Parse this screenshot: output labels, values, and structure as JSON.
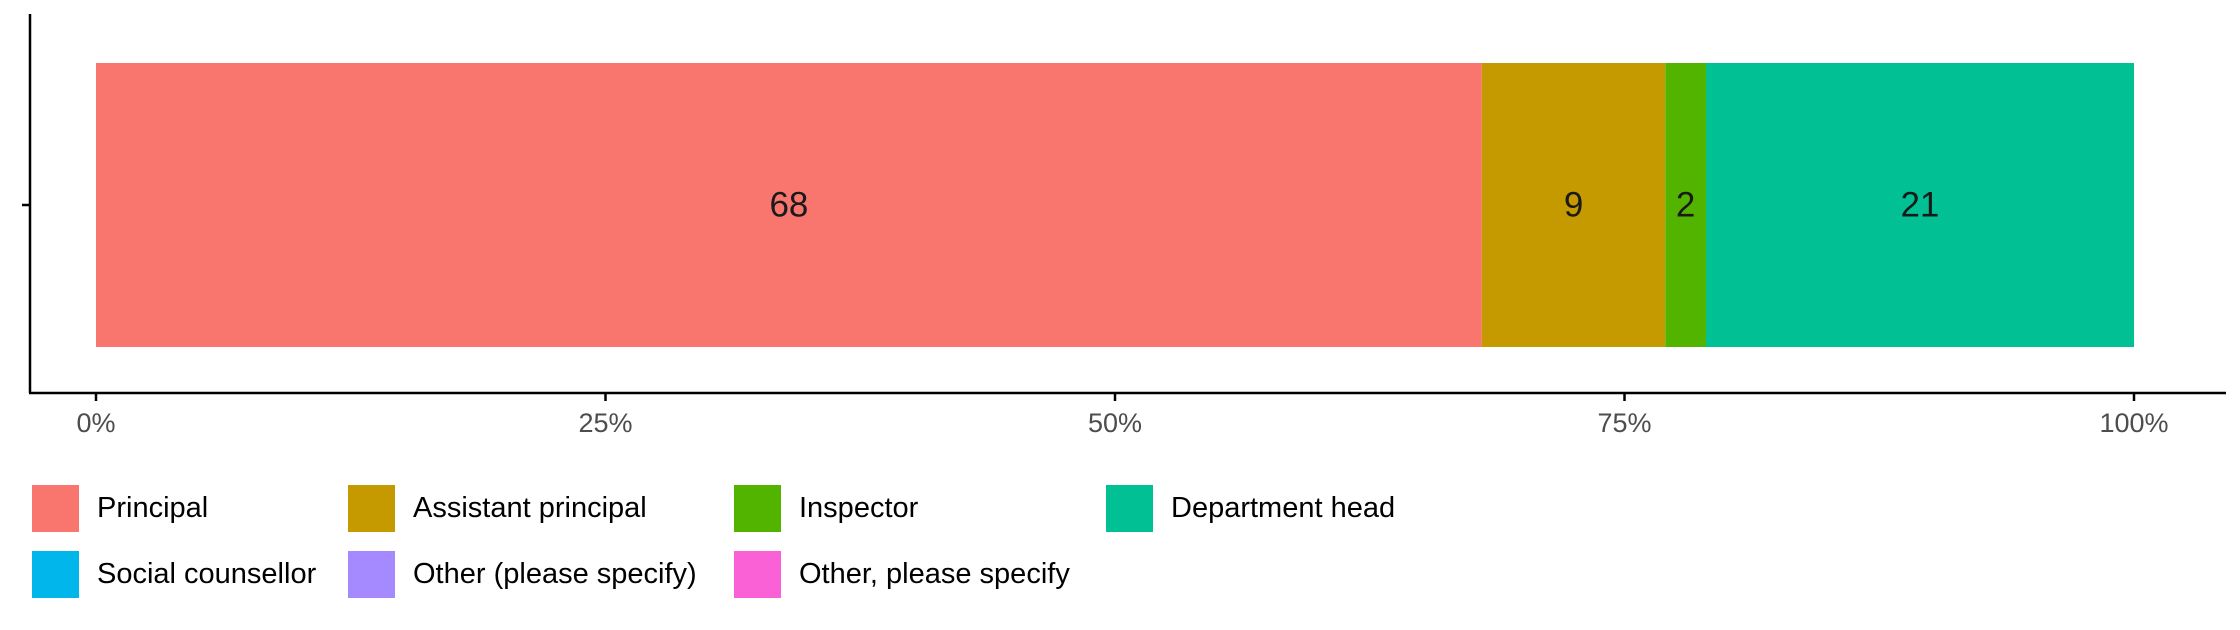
{
  "chart_data": {
    "type": "bar",
    "orientation": "horizontal-stacked-percent",
    "categories": [
      ""
    ],
    "series": [
      {
        "name": "Principal",
        "values": [
          68
        ],
        "color": "#F8766D"
      },
      {
        "name": "Assistant principal",
        "values": [
          9
        ],
        "color": "#C49A00"
      },
      {
        "name": "Inspector",
        "values": [
          2
        ],
        "color": "#53B400"
      },
      {
        "name": "Department head",
        "values": [
          21
        ],
        "color": "#00C094"
      },
      {
        "name": "Social counsellor",
        "values": [
          0
        ],
        "color": "#00B6EB"
      },
      {
        "name": "Other (please specify)",
        "values": [
          0
        ],
        "color": "#A58AFF"
      },
      {
        "name": "Other, please specify",
        "values": [
          0
        ],
        "color": "#FB61D7"
      }
    ],
    "data_labels": [
      "68",
      "9",
      "2",
      "21"
    ],
    "x_ticks": [
      "0%",
      "25%",
      "50%",
      "75%",
      "100%"
    ],
    "xlim": [
      0,
      100
    ],
    "title": "",
    "xlabel": "",
    "ylabel": "",
    "grid": false,
    "legend_position": "bottom"
  }
}
